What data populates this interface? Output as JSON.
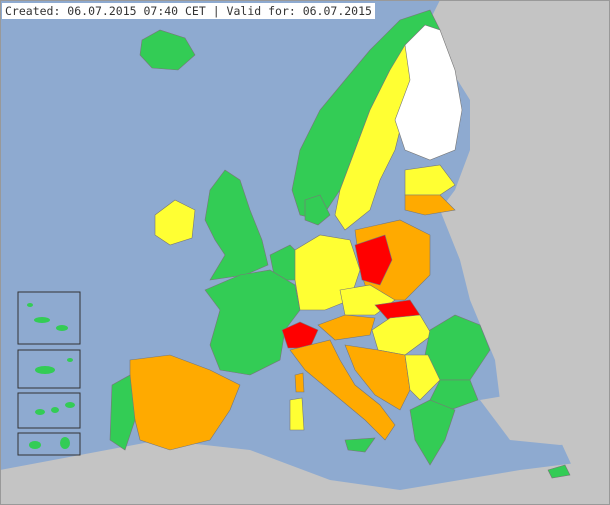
{
  "header": {
    "text": "Created: 06.07.2015 07:40 CET | Valid for: 06.07.2015"
  },
  "colors": {
    "sea": "#8eaad0",
    "no_data": "#c4c4c4",
    "missing": "#ffffff",
    "green": "#33cc55",
    "yellow": "#ffff33",
    "orange": "#ffaa00",
    "red": "#ff0000",
    "border": "#7a7a7a"
  },
  "warning_levels": [
    "green",
    "yellow",
    "orange",
    "red"
  ],
  "regions": [
    {
      "id": "iceland",
      "level": "green"
    },
    {
      "id": "norway",
      "level": "green"
    },
    {
      "id": "sweden",
      "level": "yellow"
    },
    {
      "id": "finland",
      "level": "missing"
    },
    {
      "id": "estonia-latvia",
      "level": "yellow"
    },
    {
      "id": "lithuania",
      "level": "orange"
    },
    {
      "id": "ireland",
      "level": "yellow"
    },
    {
      "id": "united-kingdom",
      "level": "green"
    },
    {
      "id": "denmark",
      "level": "green"
    },
    {
      "id": "netherlands-belgium",
      "level": "green"
    },
    {
      "id": "france",
      "level": "green"
    },
    {
      "id": "germany",
      "level": "yellow"
    },
    {
      "id": "poland",
      "level": "orange"
    },
    {
      "id": "poland-west",
      "level": "red"
    },
    {
      "id": "czechia",
      "level": "yellow"
    },
    {
      "id": "switzerland",
      "level": "red"
    },
    {
      "id": "austria",
      "level": "orange"
    },
    {
      "id": "hungary",
      "level": "red"
    },
    {
      "id": "slovakia",
      "level": "yellow"
    },
    {
      "id": "romania",
      "level": "green"
    },
    {
      "id": "italy",
      "level": "orange"
    },
    {
      "id": "spain",
      "level": "orange"
    },
    {
      "id": "portugal",
      "level": "green"
    },
    {
      "id": "balkans",
      "level": "orange"
    },
    {
      "id": "serbia",
      "level": "yellow"
    },
    {
      "id": "bulgaria",
      "level": "green"
    },
    {
      "id": "greece",
      "level": "green"
    },
    {
      "id": "cyprus",
      "level": "green"
    },
    {
      "id": "sardinia",
      "level": "yellow"
    },
    {
      "id": "corsica",
      "level": "orange"
    },
    {
      "id": "sicily",
      "level": "green"
    }
  ]
}
